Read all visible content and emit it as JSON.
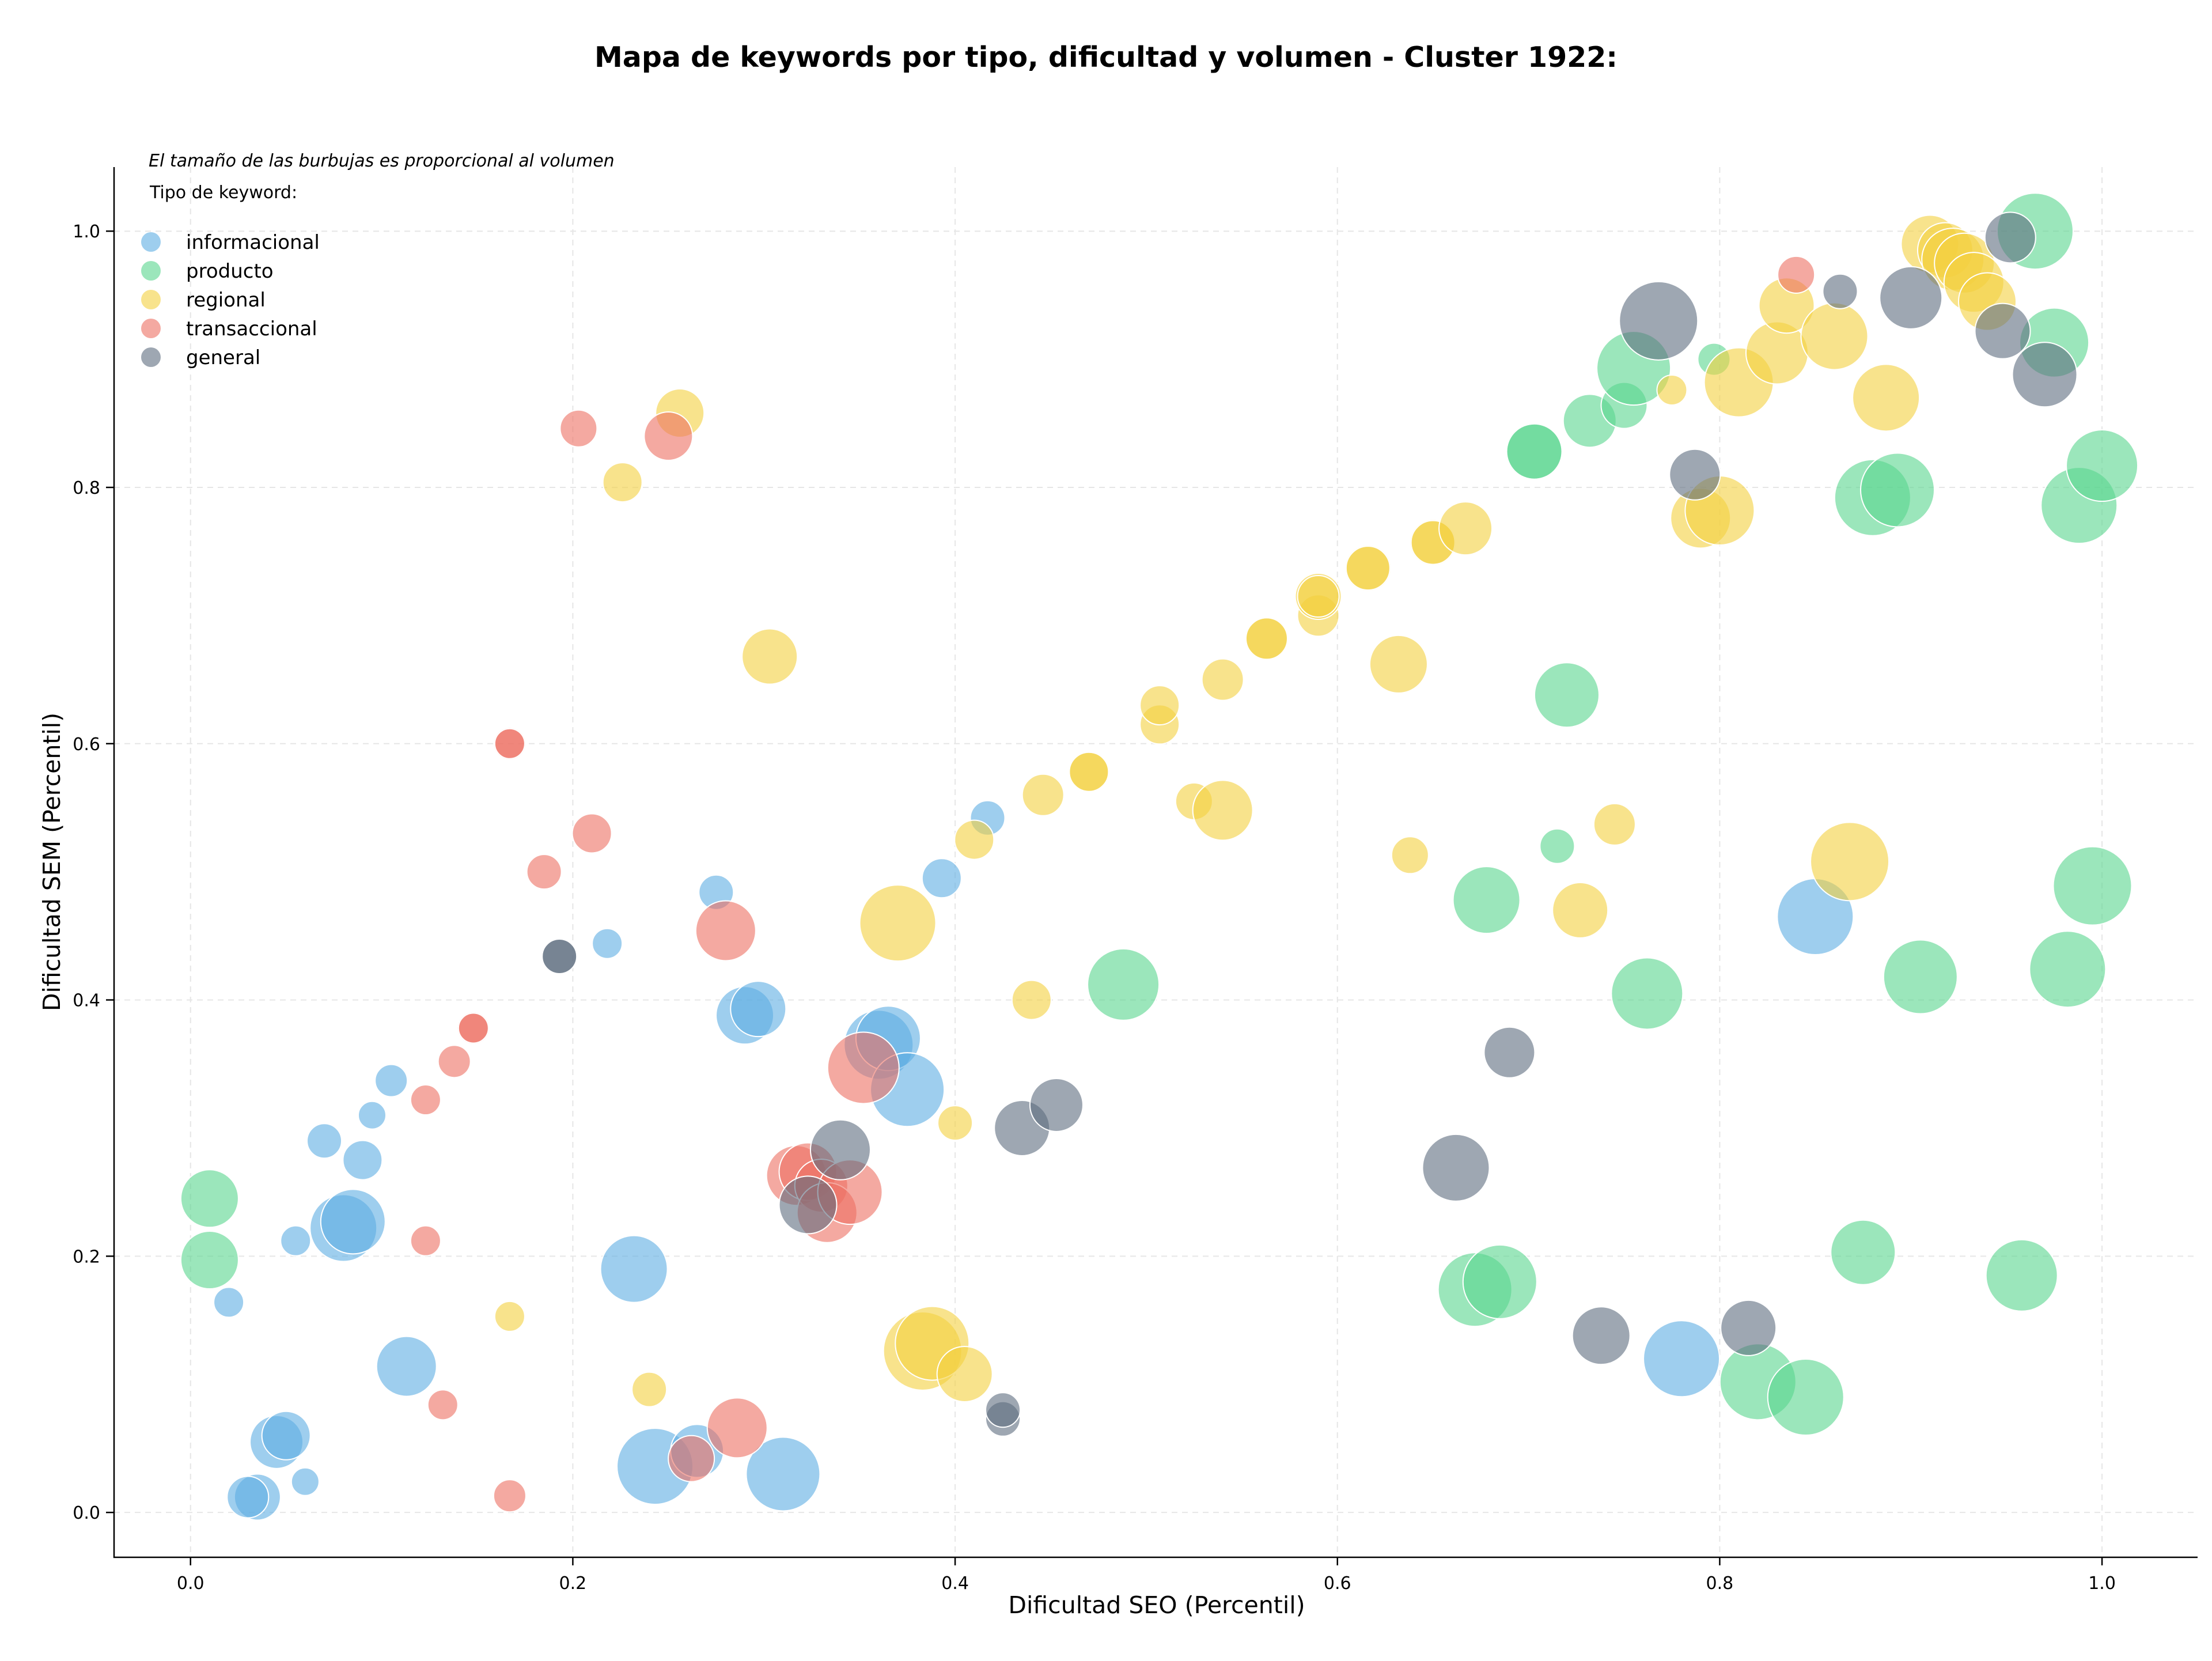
{
  "chart_data": {
    "type": "scatter",
    "title": "Mapa de keywords por tipo, dificultad y volumen - Cluster 1922:",
    "xlabel": "Dificultad SEO (Percentil)",
    "ylabel": "Dificultad SEM (Percentil)",
    "xlim": [
      -0.04,
      1.05
    ],
    "ylim": [
      -0.035,
      1.05
    ],
    "xticks": [
      "0.0",
      "0.2",
      "0.4",
      "0.6",
      "0.8",
      "1.0"
    ],
    "yticks": [
      "0.0",
      "0.2",
      "0.4",
      "0.6",
      "0.8",
      "1.0"
    ],
    "grid": true,
    "size_note": "El tamaño de las burbujas es proporcional al volumen",
    "legend_title": "Tipo de keyword:",
    "legend_position": "top-left",
    "series": [
      {
        "name": "informacional",
        "color": "#5DADE2",
        "points": [
          [
            0.02,
            0.164,
            0.5
          ],
          [
            0.035,
            0.012,
            1.2
          ],
          [
            0.03,
            0.012,
            1.0
          ],
          [
            0.045,
            0.055,
            1.5
          ],
          [
            0.05,
            0.06,
            1.3
          ],
          [
            0.06,
            0.024,
            0.4
          ],
          [
            0.055,
            0.212,
            0.5
          ],
          [
            0.07,
            0.29,
            0.7
          ],
          [
            0.09,
            0.275,
            0.9
          ],
          [
            0.095,
            0.31,
            0.4
          ],
          [
            0.08,
            0.222,
            2.1
          ],
          [
            0.085,
            0.227,
            2.0
          ],
          [
            0.105,
            0.337,
            0.6
          ],
          [
            0.113,
            0.114,
            1.8
          ],
          [
            0.218,
            0.444,
            0.5
          ],
          [
            0.232,
            0.19,
            2.1
          ],
          [
            0.243,
            0.036,
            2.5
          ],
          [
            0.265,
            0.048,
            1.5
          ],
          [
            0.275,
            0.484,
            0.7
          ],
          [
            0.29,
            0.388,
            1.7
          ],
          [
            0.297,
            0.393,
            1.6
          ],
          [
            0.31,
            0.03,
            2.4
          ],
          [
            0.36,
            0.365,
            2.2
          ],
          [
            0.365,
            0.37,
            2.0
          ],
          [
            0.375,
            0.33,
            2.4
          ],
          [
            0.393,
            0.495,
            0.9
          ],
          [
            0.417,
            0.542,
            0.7
          ],
          [
            0.78,
            0.12,
            2.5
          ],
          [
            0.85,
            0.465,
            2.5
          ]
        ]
      },
      {
        "name": "producto",
        "color": "#58D68D",
        "points": [
          [
            0.01,
            0.245,
            1.7
          ],
          [
            0.01,
            0.197,
            1.7
          ],
          [
            0.488,
            0.412,
            2.3
          ],
          [
            0.672,
            0.174,
            2.4
          ],
          [
            0.678,
            0.478,
            2.1
          ],
          [
            0.685,
            0.18,
            2.4
          ],
          [
            0.703,
            0.828,
            1.6
          ],
          [
            0.703,
            0.828,
            1.6
          ],
          [
            0.715,
            0.52,
            0.7
          ],
          [
            0.72,
            0.638,
            2.0
          ],
          [
            0.732,
            0.852,
            1.5
          ],
          [
            0.75,
            0.864,
            1.2
          ],
          [
            0.755,
            0.893,
            2.4
          ],
          [
            0.762,
            0.405,
            2.3
          ],
          [
            0.797,
            0.9,
            0.6
          ],
          [
            0.82,
            0.102,
            2.5
          ],
          [
            0.845,
            0.09,
            2.5
          ],
          [
            0.875,
            0.203,
            2.0
          ],
          [
            0.88,
            0.792,
            2.5
          ],
          [
            0.893,
            0.798,
            2.4
          ],
          [
            0.905,
            0.418,
            2.4
          ],
          [
            0.958,
            0.185,
            2.3
          ],
          [
            0.965,
            1.0,
            2.5
          ],
          [
            0.975,
            0.913,
            2.2
          ],
          [
            0.982,
            0.424,
            2.5
          ],
          [
            0.988,
            0.786,
            2.5
          ],
          [
            0.995,
            0.489,
            2.6
          ],
          [
            1.0,
            0.817,
            2.3
          ]
        ]
      },
      {
        "name": "regional",
        "color": "#F4D03F",
        "points": [
          [
            0.167,
            0.153,
            0.5
          ],
          [
            0.226,
            0.804,
            0.9
          ],
          [
            0.24,
            0.096,
            0.7
          ],
          [
            0.256,
            0.858,
            1.3
          ],
          [
            0.303,
            0.668,
            1.6
          ],
          [
            0.37,
            0.46,
            2.5
          ],
          [
            0.383,
            0.126,
            2.6
          ],
          [
            0.388,
            0.132,
            2.4
          ],
          [
            0.4,
            0.304,
            0.7
          ],
          [
            0.405,
            0.108,
            1.6
          ],
          [
            0.41,
            0.525,
            0.9
          ],
          [
            0.44,
            0.4,
            0.9
          ],
          [
            0.446,
            0.56,
            1.0
          ],
          [
            0.47,
            0.578,
            0.9
          ],
          [
            0.47,
            0.578,
            0.9
          ],
          [
            0.507,
            0.615,
            0.9
          ],
          [
            0.507,
            0.63,
            0.9
          ],
          [
            0.525,
            0.555,
            0.8
          ],
          [
            0.54,
            0.548,
            1.8
          ],
          [
            0.54,
            0.65,
            1.0
          ],
          [
            0.563,
            0.682,
            1.0
          ],
          [
            0.563,
            0.682,
            1.0
          ],
          [
            0.59,
            0.7,
            1.0
          ],
          [
            0.59,
            0.715,
            1.2
          ],
          [
            0.59,
            0.715,
            1.0
          ],
          [
            0.616,
            0.737,
            1.2
          ],
          [
            0.616,
            0.737,
            1.1
          ],
          [
            0.632,
            0.662,
            1.7
          ],
          [
            0.638,
            0.513,
            0.8
          ],
          [
            0.65,
            0.757,
            1.2
          ],
          [
            0.65,
            0.757,
            1.1
          ],
          [
            0.667,
            0.768,
            1.5
          ],
          [
            0.727,
            0.47,
            1.6
          ],
          [
            0.745,
            0.537,
            1.0
          ],
          [
            0.775,
            0.876,
            0.5
          ],
          [
            0.79,
            0.776,
            1.8
          ],
          [
            0.8,
            0.782,
            2.2
          ],
          [
            0.81,
            0.882,
            2.2
          ],
          [
            0.83,
            0.905,
            1.9
          ],
          [
            0.835,
            0.942,
            1.6
          ],
          [
            0.86,
            0.918,
            2.1
          ],
          [
            0.868,
            0.508,
            2.6
          ],
          [
            0.887,
            0.87,
            2.1
          ],
          [
            0.91,
            0.99,
            1.7
          ],
          [
            0.918,
            0.985,
            1.6
          ],
          [
            0.922,
            0.978,
            1.9
          ],
          [
            0.928,
            0.975,
            1.8
          ],
          [
            0.933,
            0.96,
            1.8
          ],
          [
            0.94,
            0.945,
            1.7
          ]
        ]
      },
      {
        "name": "transaccional",
        "color": "#EC7063",
        "points": [
          [
            0.123,
            0.212,
            0.5
          ],
          [
            0.123,
            0.322,
            0.5
          ],
          [
            0.132,
            0.084,
            0.5
          ],
          [
            0.138,
            0.352,
            0.6
          ],
          [
            0.148,
            0.378,
            0.6
          ],
          [
            0.148,
            0.378,
            0.5
          ],
          [
            0.167,
            0.6,
            0.6
          ],
          [
            0.167,
            0.6,
            0.5
          ],
          [
            0.167,
            0.013,
            0.6
          ],
          [
            0.185,
            0.5,
            0.7
          ],
          [
            0.203,
            0.846,
            0.8
          ],
          [
            0.21,
            0.53,
            0.9
          ],
          [
            0.25,
            0.84,
            1.3
          ],
          [
            0.262,
            0.042,
            1.2
          ],
          [
            0.28,
            0.454,
            1.8
          ],
          [
            0.286,
            0.066,
            1.8
          ],
          [
            0.317,
            0.263,
            1.8
          ],
          [
            0.323,
            0.266,
            1.7
          ],
          [
            0.33,
            0.255,
            1.5
          ],
          [
            0.333,
            0.234,
            1.8
          ],
          [
            0.345,
            0.25,
            2.0
          ],
          [
            0.352,
            0.347,
            2.3
          ],
          [
            0.84,
            0.966,
            0.8
          ]
        ]
      },
      {
        "name": "general",
        "color": "#5D6D7E",
        "points": [
          [
            0.193,
            0.434,
            0.7
          ],
          [
            0.193,
            0.434,
            0.7
          ],
          [
            0.323,
            0.24,
            1.7
          ],
          [
            0.34,
            0.283,
            1.8
          ],
          [
            0.425,
            0.073,
            0.7
          ],
          [
            0.425,
            0.08,
            0.7
          ],
          [
            0.435,
            0.3,
            1.6
          ],
          [
            0.453,
            0.318,
            1.5
          ],
          [
            0.662,
            0.269,
            2.1
          ],
          [
            0.69,
            0.359,
            1.4
          ],
          [
            0.738,
            0.138,
            1.7
          ],
          [
            0.768,
            0.93,
            2.6
          ],
          [
            0.787,
            0.81,
            1.4
          ],
          [
            0.815,
            0.144,
            1.6
          ],
          [
            0.863,
            0.953,
            0.7
          ],
          [
            0.9,
            0.948,
            1.9
          ],
          [
            0.948,
            0.922,
            1.6
          ],
          [
            0.952,
            0.995,
            1.4
          ],
          [
            0.97,
            0.888,
            2.0
          ]
        ]
      }
    ]
  }
}
